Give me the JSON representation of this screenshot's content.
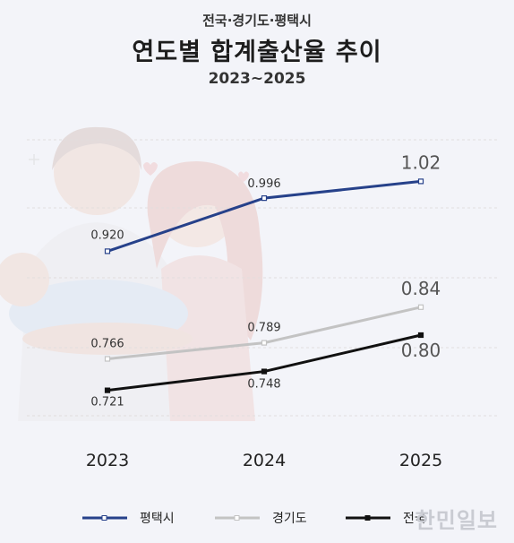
{
  "header": {
    "subtitle_top": "전국·경기도·평택시",
    "title": "연도별 합계출산율 추이",
    "period": "2023~2025"
  },
  "watermark": "한민일보",
  "chart_data": {
    "type": "line",
    "x": [
      "2023",
      "2024",
      "2025"
    ],
    "series": [
      {
        "name": "평택시",
        "values": [
          0.92,
          0.996,
          1.02
        ],
        "labels": [
          "0.920",
          "0.996",
          "1.02"
        ],
        "color": "#26418a"
      },
      {
        "name": "경기도",
        "values": [
          0.766,
          0.789,
          0.84
        ],
        "labels": [
          "0.766",
          "0.789",
          "0.84"
        ],
        "color": "#c3c3c3"
      },
      {
        "name": "전국",
        "values": [
          0.721,
          0.748,
          0.8
        ],
        "labels": [
          "0.721",
          "0.748",
          "0.80"
        ],
        "color": "#111111"
      }
    ],
    "ylim": [
      0.6,
      1.1
    ],
    "grid": "dashed horizontal",
    "legend": "bottom"
  }
}
